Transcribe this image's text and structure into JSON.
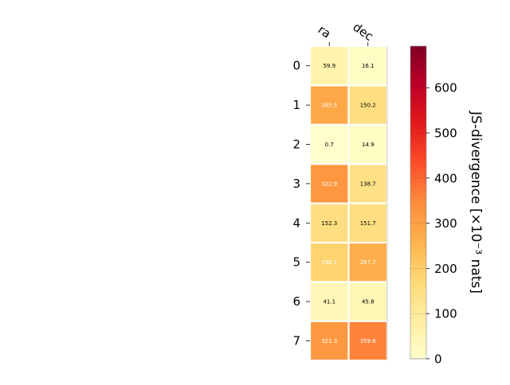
{
  "chart_data": {
    "type": "heatmap",
    "title": "",
    "columns": [
      "ra",
      "dec"
    ],
    "rows": [
      "0",
      "1",
      "2",
      "3",
      "4",
      "5",
      "6",
      "7"
    ],
    "values": [
      [
        59.9,
        16.1
      ],
      [
        285.5,
        150.2
      ],
      [
        0.7,
        14.9
      ],
      [
        322.9,
        138.7
      ],
      [
        152.3,
        151.7
      ],
      [
        186.1,
        267.7
      ],
      [
        41.1,
        45.8
      ],
      [
        321.3,
        359.6
      ]
    ],
    "colorbar": {
      "label": "JS-divergence [×10⁻³ nats]",
      "ticks": [
        0,
        100,
        200,
        300,
        400,
        500,
        600
      ],
      "range": [
        0,
        692
      ],
      "colormap": "YlOrRd",
      "placement": "right"
    },
    "grid": false
  }
}
